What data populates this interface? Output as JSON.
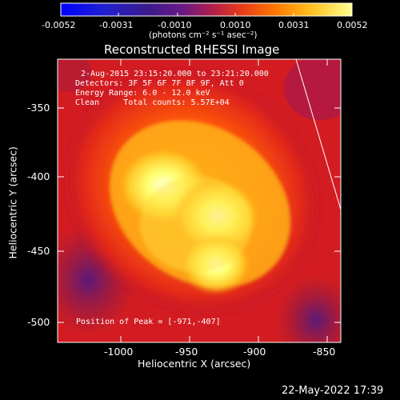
{
  "colorbar": {
    "ticks": [
      "-0.0052",
      "-0.0031",
      "-0.0010",
      "0.0010",
      "0.0031",
      "0.0052"
    ],
    "units": "(photons cm⁻² s⁻¹ asec⁻²)"
  },
  "title": "Reconstructed RHESSI Image",
  "info": {
    "time_range": "2-Aug-2015 23:15:20.000 to 23:21:20.000",
    "detectors": "Detectors: 3F 5F 6F 7F 8F 9F, Att 0",
    "energy": "Energy Range: 6.0 - 12.0 keV",
    "method_counts": "Clean     Total counts: 5.57E+04"
  },
  "peak_text": "Position of Peak = [-971,-407]",
  "axes": {
    "xlabel": "Heliocentric X (arcsec)",
    "ylabel": "Heliocentric Y (arcsec)",
    "xticks": [
      "-1000",
      "-950",
      "-900",
      "-850"
    ],
    "yticks": [
      "-350",
      "-400",
      "-450",
      "-500"
    ],
    "xrange": [
      -1040,
      -845
    ],
    "yrange": [
      -513,
      -325
    ]
  },
  "timestamp": "22-May-2022 17:39",
  "colors": {
    "background": "#000000",
    "foreground": "#ffffff",
    "cmap_low": "#0000ff",
    "cmap_mid": "#7f2a88",
    "cmap_high": "#ffff70"
  }
}
